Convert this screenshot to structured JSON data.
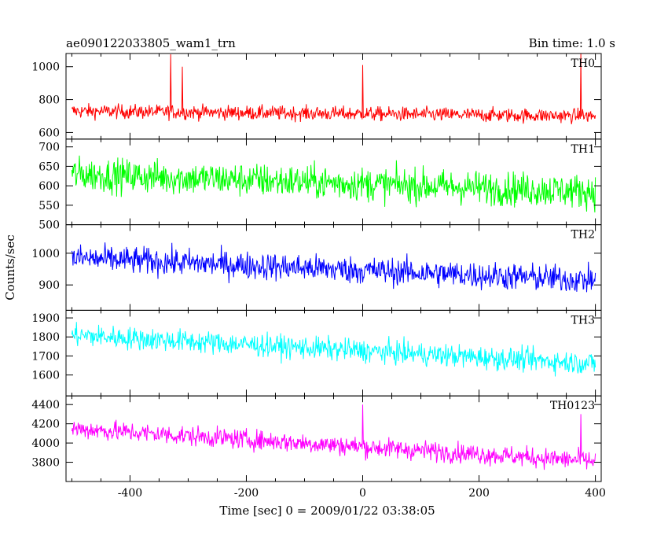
{
  "chart_data": {
    "type": "line",
    "title": "ae090122033805_wam1_trn",
    "bin_time": "Bin time: 1.0 s",
    "xlabel": "Time [sec] 0 = 2009/01/22 03:38:05",
    "ylabel": "Counts/sec",
    "xlim": [
      -510,
      410
    ],
    "x_ticks": [
      -400,
      -200,
      0,
      200,
      400
    ],
    "x_range_data": [
      -500,
      400
    ],
    "panels": [
      {
        "name": "TH0",
        "color": "#ff0000",
        "ylim": [
          560,
          1080
        ],
        "y_ticks": [
          600,
          800,
          1000
        ],
        "trend": [
          [
            -500,
            730
          ],
          [
            400,
            700
          ]
        ],
        "noise": 40,
        "spikes": [
          [
            -330,
            1075
          ],
          [
            -310,
            1000
          ],
          [
            0,
            1010
          ],
          [
            375,
            1080
          ]
        ]
      },
      {
        "name": "TH1",
        "color": "#00ff00",
        "ylim": [
          500,
          720
        ],
        "y_ticks": [
          500,
          550,
          600,
          650,
          700
        ],
        "trend": [
          [
            -500,
            630
          ],
          [
            400,
            585
          ]
        ],
        "noise": 40,
        "spikes": []
      },
      {
        "name": "TH2",
        "color": "#0000ff",
        "ylim": [
          820,
          1090
        ],
        "y_ticks": [
          900,
          1000
        ],
        "trend": [
          [
            -500,
            985
          ],
          [
            400,
            915
          ]
        ],
        "noise": 40,
        "spikes": []
      },
      {
        "name": "TH3",
        "color": "#00ffff",
        "ylim": [
          1490,
          1940
        ],
        "y_ticks": [
          1600,
          1700,
          1800,
          1900
        ],
        "trend": [
          [
            -500,
            1810
          ],
          [
            400,
            1660
          ]
        ],
        "noise": 55,
        "spikes": []
      },
      {
        "name": "TH0123",
        "color": "#ff00ff",
        "ylim": [
          3600,
          4490
        ],
        "y_ticks": [
          3800,
          4000,
          4200,
          4400
        ],
        "trend": [
          [
            -500,
            4150
          ],
          [
            400,
            3810
          ]
        ],
        "noise": 95,
        "spikes": [
          [
            0,
            4400
          ],
          [
            375,
            4300
          ]
        ]
      }
    ]
  }
}
